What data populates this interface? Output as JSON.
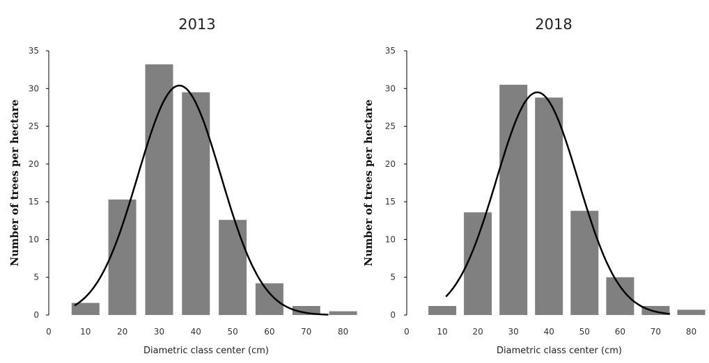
{
  "chart_data": [
    {
      "type": "bar",
      "title": "2013",
      "xlabel": "Diametric class center (cm)",
      "ylabel": "Number of trees per hectare",
      "ylim": [
        0,
        35
      ],
      "xlim": [
        0,
        85
      ],
      "yticks": [
        "0",
        "5",
        "10",
        "15",
        "20",
        "25",
        "30",
        "35"
      ],
      "xticks": [
        "0",
        "10",
        "20",
        "30",
        "40",
        "50",
        "60",
        "70",
        "80"
      ],
      "categories": [
        "10",
        "20",
        "30",
        "40",
        "50",
        "60",
        "70",
        "80"
      ],
      "x": [
        10,
        20,
        30,
        40,
        50,
        60,
        70,
        80
      ],
      "values": [
        1.6,
        15.3,
        33.2,
        29.5,
        12.6,
        4.2,
        1.2,
        0.5
      ],
      "fit_curve": {
        "type": "normal",
        "mean": 35.5,
        "sd": 11.3,
        "peak": 30.4,
        "x_range": [
          7,
          76
        ]
      },
      "colors": {
        "bar": "#808080",
        "curve": "#000000"
      },
      "grid": false
    },
    {
      "type": "bar",
      "title": "2018",
      "xlabel": "Diametric class center (cm)",
      "ylabel": "Number of trees per hectare",
      "ylim": [
        0,
        35
      ],
      "xlim": [
        0,
        85
      ],
      "yticks": [
        "0",
        "5",
        "10",
        "15",
        "20",
        "25",
        "30",
        "35"
      ],
      "xticks": [
        "0",
        "10",
        "20",
        "30",
        "40",
        "50",
        "60",
        "70",
        "80"
      ],
      "categories": [
        "10",
        "20",
        "30",
        "40",
        "50",
        "60",
        "70",
        "80"
      ],
      "x": [
        10,
        20,
        30,
        40,
        50,
        60,
        70,
        80
      ],
      "values": [
        1.2,
        13.6,
        30.5,
        28.8,
        13.8,
        5.0,
        1.2,
        0.7
      ],
      "fit_curve": {
        "type": "normal",
        "mean": 36.7,
        "sd": 11.5,
        "peak": 29.5,
        "x_range": [
          11,
          74
        ]
      },
      "colors": {
        "bar": "#808080",
        "curve": "#000000"
      },
      "grid": false
    }
  ]
}
